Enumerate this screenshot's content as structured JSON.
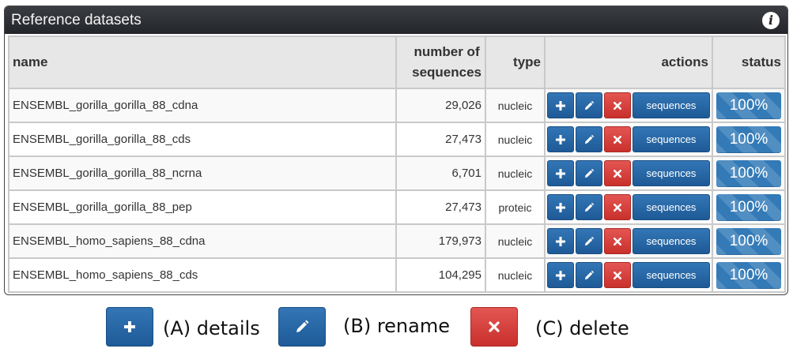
{
  "panel": {
    "title": "Reference datasets",
    "info_icon": "info-icon"
  },
  "table": {
    "headers": {
      "name": "name",
      "number_line1": "number of",
      "number_line2": "sequences",
      "type": "type",
      "actions": "actions",
      "status": "status"
    },
    "rows": [
      {
        "name": "ENSEMBL_gorilla_gorilla_88_cdna",
        "sequences": "29,026",
        "type": "nucleic",
        "seq_button": "sequences",
        "status": "100%",
        "progress": 1.0
      },
      {
        "name": "ENSEMBL_gorilla_gorilla_88_cds",
        "sequences": "27,473",
        "type": "nucleic",
        "seq_button": "sequences",
        "status": "100%",
        "progress": 1.0
      },
      {
        "name": "ENSEMBL_gorilla_gorilla_88_ncrna",
        "sequences": "6,701",
        "type": "nucleic",
        "seq_button": "sequences",
        "status": "100%",
        "progress": 1.0
      },
      {
        "name": "ENSEMBL_gorilla_gorilla_88_pep",
        "sequences": "27,473",
        "type": "proteic",
        "seq_button": "sequences",
        "status": "100%",
        "progress": 1.0
      },
      {
        "name": "ENSEMBL_homo_sapiens_88_cdna",
        "sequences": "179,973",
        "type": "nucleic",
        "seq_button": "sequences",
        "status": "100%",
        "progress": 1.0
      },
      {
        "name": "ENSEMBL_homo_sapiens_88_cds",
        "sequences": "104,295",
        "type": "nucleic",
        "seq_button": "sequences",
        "status": "100%",
        "progress": 1.0
      }
    ]
  },
  "legend": {
    "details": "(A) details",
    "rename": "(B) rename",
    "delete": "(C) delete"
  },
  "colors": {
    "primary": "#337ab7",
    "danger": "#d9534f",
    "header_bg": "#2b2d31"
  }
}
